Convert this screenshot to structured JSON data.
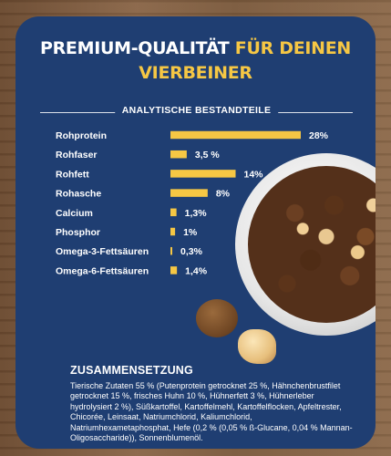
{
  "heading": {
    "line1_white": "PREMIUM-QUALITÄT ",
    "line1_yellow": "FÜR DEINEN",
    "line2_yellow": "VIERBEINER"
  },
  "section_title": "ANALYTISCHE BESTANDTEILE",
  "chart_data": {
    "type": "bar",
    "orientation": "horizontal",
    "title": "ANALYTISCHE BESTANDTEILE",
    "categories": [
      "Rohprotein",
      "Rohfaser",
      "Rohfett",
      "Rohasche",
      "Calcium",
      "Phosphor",
      "Omega-3-Fettsäuren",
      "Omega-6-Fettsäuren"
    ],
    "values": [
      28,
      3.5,
      14,
      8,
      1.3,
      1,
      0.3,
      1.4
    ],
    "value_labels": [
      "28%",
      "3,5 %",
      "14%",
      "8%",
      "1,3%",
      "1%",
      "0,3%",
      "1,4%"
    ],
    "bar_color": "#f6c744",
    "xlim": [
      0,
      28
    ],
    "grid": false,
    "legend": "none"
  },
  "composition": {
    "title": "ZUSAMMENSETZUNG",
    "lines": [
      "Tierische Zutaten 55 % (Putenprotein getrocknet 25 %, Hähnchenbrustfilet",
      "getrocknet 15 %, frisches Huhn 10 %, Hühnerfett 3 %, Hühnerleber",
      "hydrolysiert 2 %), Süßkartoffel, Kartoffelmehl, Kartoffelflocken, Apfeltrester,",
      "Chicorée, Leinsaat, Natriumchlorid, Kaliumchlorid,",
      "Natriumhexametaphosphat, Hefe (0,2 % (0,05 % ß-Glucane, 0,04 % Mannan-",
      "Oligosaccharide)), Sonnenblumenöl."
    ]
  },
  "colors": {
    "panel": "#1f3e72",
    "accent": "#f6c744",
    "text": "#ffffff"
  }
}
